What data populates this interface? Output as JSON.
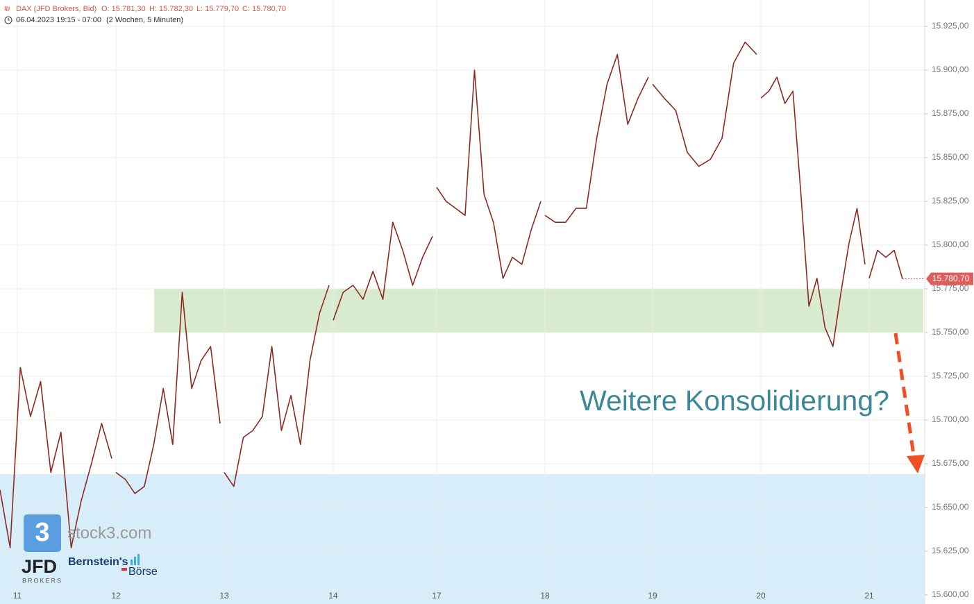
{
  "chart_data": {
    "type": "line",
    "header": {
      "symbol": "DAX (JFD Brokers, Bid)",
      "open": "O: 15.781,30",
      "high": "H: 15.782,30",
      "low": "L: 15.779,70",
      "close": "C: 15.780,70",
      "time": "06.04.2023 19:15 - 07:00",
      "period": "(2 Wochen, 5 Minuten)"
    },
    "categories": [
      "11",
      "12",
      "13",
      "14",
      "17",
      "18",
      "19",
      "20",
      "21"
    ],
    "series": [
      {
        "color": "#8b2a22",
        "values": [
          [
            15660,
            15627,
            15730,
            15702,
            15722,
            15670,
            15693,
            15627,
            15654,
            15675,
            15698,
            15678
          ],
          [
            15670,
            15666,
            15658,
            15662,
            15686,
            15718,
            15686,
            15773,
            15718,
            15734,
            15742,
            15698
          ],
          [
            15670,
            15662,
            15690,
            15694,
            15702,
            15742,
            15694,
            15714,
            15686,
            15734,
            15761,
            15777
          ],
          [
            15757,
            15773,
            15777,
            15769,
            15785,
            15769,
            15813,
            15797,
            15777,
            15793,
            15805
          ],
          [
            15833,
            15825,
            15821,
            15817,
            15900,
            15829,
            15813,
            15781,
            15793,
            15789,
            15809,
            15825
          ],
          [
            15817,
            15813,
            15813,
            15821,
            15821,
            15861,
            15892,
            15909,
            15869,
            15884,
            15896
          ],
          [
            15892,
            15884,
            15877,
            15853,
            15845,
            15849,
            15861,
            15904,
            15916,
            15909
          ],
          [
            15884,
            15888,
            15896,
            15881,
            15888,
            15829,
            15765,
            15781,
            15753,
            15742,
            15773,
            15801,
            15821,
            15789
          ],
          [
            15781,
            15797,
            15793,
            15797,
            15780.7
          ]
        ]
      }
    ],
    "last_price": {
      "value": 15780.7,
      "label": "15.780,70"
    },
    "zones": [
      {
        "from": 15750,
        "to": 15775,
        "color": "#d6eacb"
      },
      {
        "from": 15594.8,
        "to": 15669,
        "color": "#d6ecfa"
      }
    ],
    "ylim": [
      15594.8,
      15940.1
    ],
    "yticks": [
      {
        "value": 15600,
        "label": "15.600,00"
      },
      {
        "value": 15625,
        "label": "15.625,00"
      },
      {
        "value": 15650,
        "label": "15.650,00"
      },
      {
        "value": 15675,
        "label": "15.675,00"
      },
      {
        "value": 15700,
        "label": "15.700,00"
      },
      {
        "value": 15725,
        "label": "15.725,00"
      },
      {
        "value": 15750,
        "label": "15.750,00"
      },
      {
        "value": 15775,
        "label": "15.775,00"
      },
      {
        "value": 15800,
        "label": "15.800,00"
      },
      {
        "value": 15825,
        "label": "15.825,00"
      },
      {
        "value": 15850,
        "label": "15.850,00"
      },
      {
        "value": 15875,
        "label": "15.875,00"
      },
      {
        "value": 15900,
        "label": "15.900,00"
      },
      {
        "value": 15925,
        "label": "15.925,00"
      }
    ],
    "grid": true,
    "annotation": "Weitere Konsolidierung?",
    "logos": {
      "stock3": "stock3.com",
      "jfd": "JFD",
      "jfd_sub": "BROKERS",
      "bernstein": "Bernstein's",
      "boerse": "Börse"
    }
  }
}
